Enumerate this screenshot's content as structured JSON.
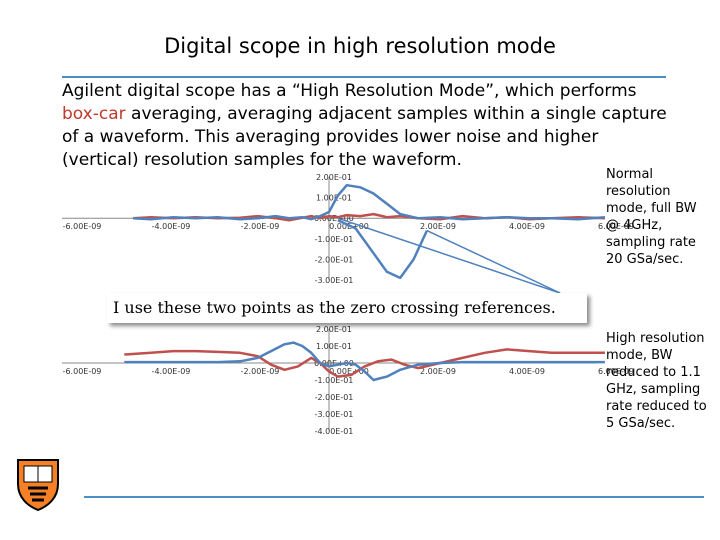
{
  "slide": {
    "title": "Digital scope in high resolution mode",
    "intro": {
      "part1": "Agilent digital scope has a “High Resolution Mode”, which performs ",
      "highlight": "box-car",
      "part2": " averaging, averaging adjacent samples within a single capture of a waveform.  This averaging provides lower noise and higher (vertical) resolution samples for the waveform."
    },
    "note_top": "Normal resolution mode, full BW @ 4GHz, sampling rate 20 GSa/sec.",
    "note_bottom": "High resolution mode, BW reduced to 1.1 GHz, sampling rate reduced to  5 GSa/sec.",
    "callout": "I use these two points as the zero crossing references.",
    "colors": {
      "accent_rule": "#4a90c8",
      "series_red": "#c0504d",
      "series_blue": "#4f81bd",
      "highlight_text": "#c0392b"
    },
    "logo_icon": "princeton-shield-icon"
  },
  "chart_data": [
    {
      "type": "line",
      "x_ticks": [
        "-6.00E-09",
        "-4.00E-09",
        "-2.00E-09",
        "0.00E+00",
        "2.00E-09",
        "4.00E-09",
        "6.00E-09"
      ],
      "y_ticks": [
        "2.00E-01",
        "1.00E-01",
        "0.00E+00",
        "-1.00E-01",
        "-2.00E-01",
        "-3.00E-01"
      ],
      "xlim": [
        -6e-09,
        6e-09
      ],
      "ylim": [
        -0.3,
        0.2
      ],
      "series": [
        {
          "color": "#c0504d",
          "x": [
            -4.4e-09,
            -4e-09,
            -3.5e-09,
            -3e-09,
            -2.5e-09,
            -2e-09,
            -1.6e-09,
            -1.2e-09,
            -9e-10,
            -6e-10,
            -4e-10,
            -2e-10,
            0.0,
            2e-10,
            4e-10,
            7e-10,
            1e-09,
            1.3e-09,
            1.6e-09,
            2e-09,
            2.5e-09,
            3e-09,
            3.5e-09,
            4e-09,
            4.5e-09,
            5e-09,
            5.6e-09,
            6.2e-09
          ],
          "y": [
            0.0,
            0.005,
            0.0,
            0.005,
            0.0,
            0.002,
            0.01,
            0.0,
            -0.01,
            0.002,
            0.01,
            0.0,
            0.01,
            0.005,
            0.015,
            0.01,
            0.02,
            0.005,
            0.01,
            0.0,
            -0.005,
            0.01,
            0.0,
            0.005,
            -0.005,
            0.0,
            0.005,
            0.0
          ]
        },
        {
          "color": "#4f81bd",
          "x": [
            -4.4e-09,
            -4e-09,
            -3.5e-09,
            -3e-09,
            -2.5e-09,
            -2e-09,
            -1.6e-09,
            -1.2e-09,
            -9e-10,
            -6e-10,
            -4e-10,
            -2e-10,
            0.0,
            2e-10,
            4e-10,
            7e-10,
            1e-09,
            1.3e-09,
            1.6e-09,
            2e-09,
            2.5e-09,
            3e-09,
            3.5e-09,
            4e-09,
            4.5e-09,
            5e-09,
            5.6e-09,
            6.2e-09
          ],
          "y": [
            0.0,
            -0.005,
            0.005,
            0.0,
            0.005,
            -0.005,
            0.0,
            0.01,
            0.0,
            0.005,
            -0.005,
            0.01,
            0.03,
            0.11,
            0.16,
            0.15,
            0.12,
            0.07,
            0.02,
            0.0,
            0.005,
            -0.005,
            0.0,
            0.005,
            0.0,
            0.0,
            -0.005,
            0.005
          ]
        },
        {
          "color": "#4f81bd",
          "x": [
            2e-10,
            6e-10,
            1e-09,
            1.3e-09,
            1.6e-09,
            1.9e-09,
            2.2e-09
          ],
          "y": [
            -0.01,
            -0.05,
            -0.17,
            -0.26,
            -0.29,
            -0.2,
            -0.06
          ]
        }
      ]
    },
    {
      "type": "line",
      "x_ticks": [
        "-6.00E-09",
        "-4.00E-09",
        "-2.00E-09",
        "0.00E+00",
        "2.00E-09",
        "4.00E-09",
        "6.00E-09"
      ],
      "y_ticks": [
        "2.00E-01",
        "1.00E-01",
        "0.00E+00",
        "-1.00E-01",
        "-2.00E-01",
        "-3.00E-01",
        "-4.00E-01"
      ],
      "xlim": [
        -6e-09,
        6e-09
      ],
      "ylim": [
        -0.4,
        0.2
      ],
      "series": [
        {
          "color": "#c0504d",
          "x": [
            -4.6e-09,
            -4e-09,
            -3.5e-09,
            -3e-09,
            -2.5e-09,
            -2e-09,
            -1.6e-09,
            -1.3e-09,
            -1e-09,
            -7e-10,
            -4e-10,
            -2e-10,
            0.0,
            2e-10,
            5e-10,
            8e-10,
            1.1e-09,
            1.4e-09,
            1.7e-09,
            2e-09,
            2.5e-09,
            3e-09,
            3.5e-09,
            4e-09,
            4.5e-09,
            5e-09,
            5.5e-09,
            6.2e-09
          ],
          "y": [
            0.05,
            0.06,
            0.07,
            0.07,
            0.065,
            0.06,
            0.04,
            -0.01,
            -0.04,
            -0.02,
            0.03,
            0.0,
            -0.05,
            -0.08,
            -0.07,
            -0.02,
            0.01,
            0.02,
            -0.01,
            -0.03,
            0.0,
            0.03,
            0.06,
            0.08,
            0.07,
            0.06,
            0.06,
            0.06
          ]
        },
        {
          "color": "#4f81bd",
          "x": [
            -4.6e-09,
            -4e-09,
            -3.5e-09,
            -3e-09,
            -2.5e-09,
            -2e-09,
            -1.6e-09,
            -1.3e-09,
            -1e-09,
            -8e-10,
            -6e-10,
            -4e-10,
            -2e-10,
            0.0,
            2e-10,
            4e-10,
            6e-10,
            8e-10,
            1e-09,
            1.3e-09,
            1.6e-09,
            2e-09,
            2.5e-09,
            3e-09,
            3.5e-09,
            4e-09,
            5e-09,
            6.2e-09
          ],
          "y": [
            0.005,
            0.005,
            0.005,
            0.005,
            0.005,
            0.01,
            0.03,
            0.07,
            0.11,
            0.12,
            0.1,
            0.06,
            0.0,
            -0.02,
            -0.01,
            0.0,
            -0.01,
            -0.05,
            -0.1,
            -0.08,
            -0.04,
            -0.01,
            0.0,
            0.005,
            0.005,
            0.005,
            0.005,
            0.005
          ]
        }
      ]
    }
  ]
}
